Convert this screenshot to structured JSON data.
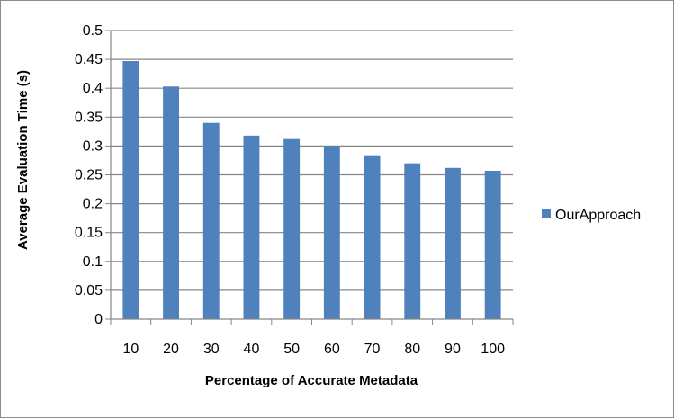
{
  "chart_data": {
    "type": "bar",
    "title": "",
    "xlabel": "Percentage of Accurate Metadata",
    "ylabel": "Average Evaluation Time (s)",
    "categories": [
      "10",
      "20",
      "30",
      "40",
      "50",
      "60",
      "70",
      "80",
      "90",
      "100"
    ],
    "series": [
      {
        "name": "OurApproach",
        "values": [
          0.447,
          0.403,
          0.34,
          0.318,
          0.312,
          0.3,
          0.284,
          0.27,
          0.262,
          0.257
        ]
      }
    ],
    "ylim": [
      0,
      0.5
    ],
    "yticks": [
      "0",
      "0.05",
      "0.1",
      "0.15",
      "0.2",
      "0.25",
      "0.3",
      "0.35",
      "0.4",
      "0.45",
      "0.5"
    ],
    "grid": true,
    "legend_position": "right",
    "colors": {
      "bar": "#4f81bd",
      "grid": "#868686",
      "axis": "#868686"
    }
  }
}
